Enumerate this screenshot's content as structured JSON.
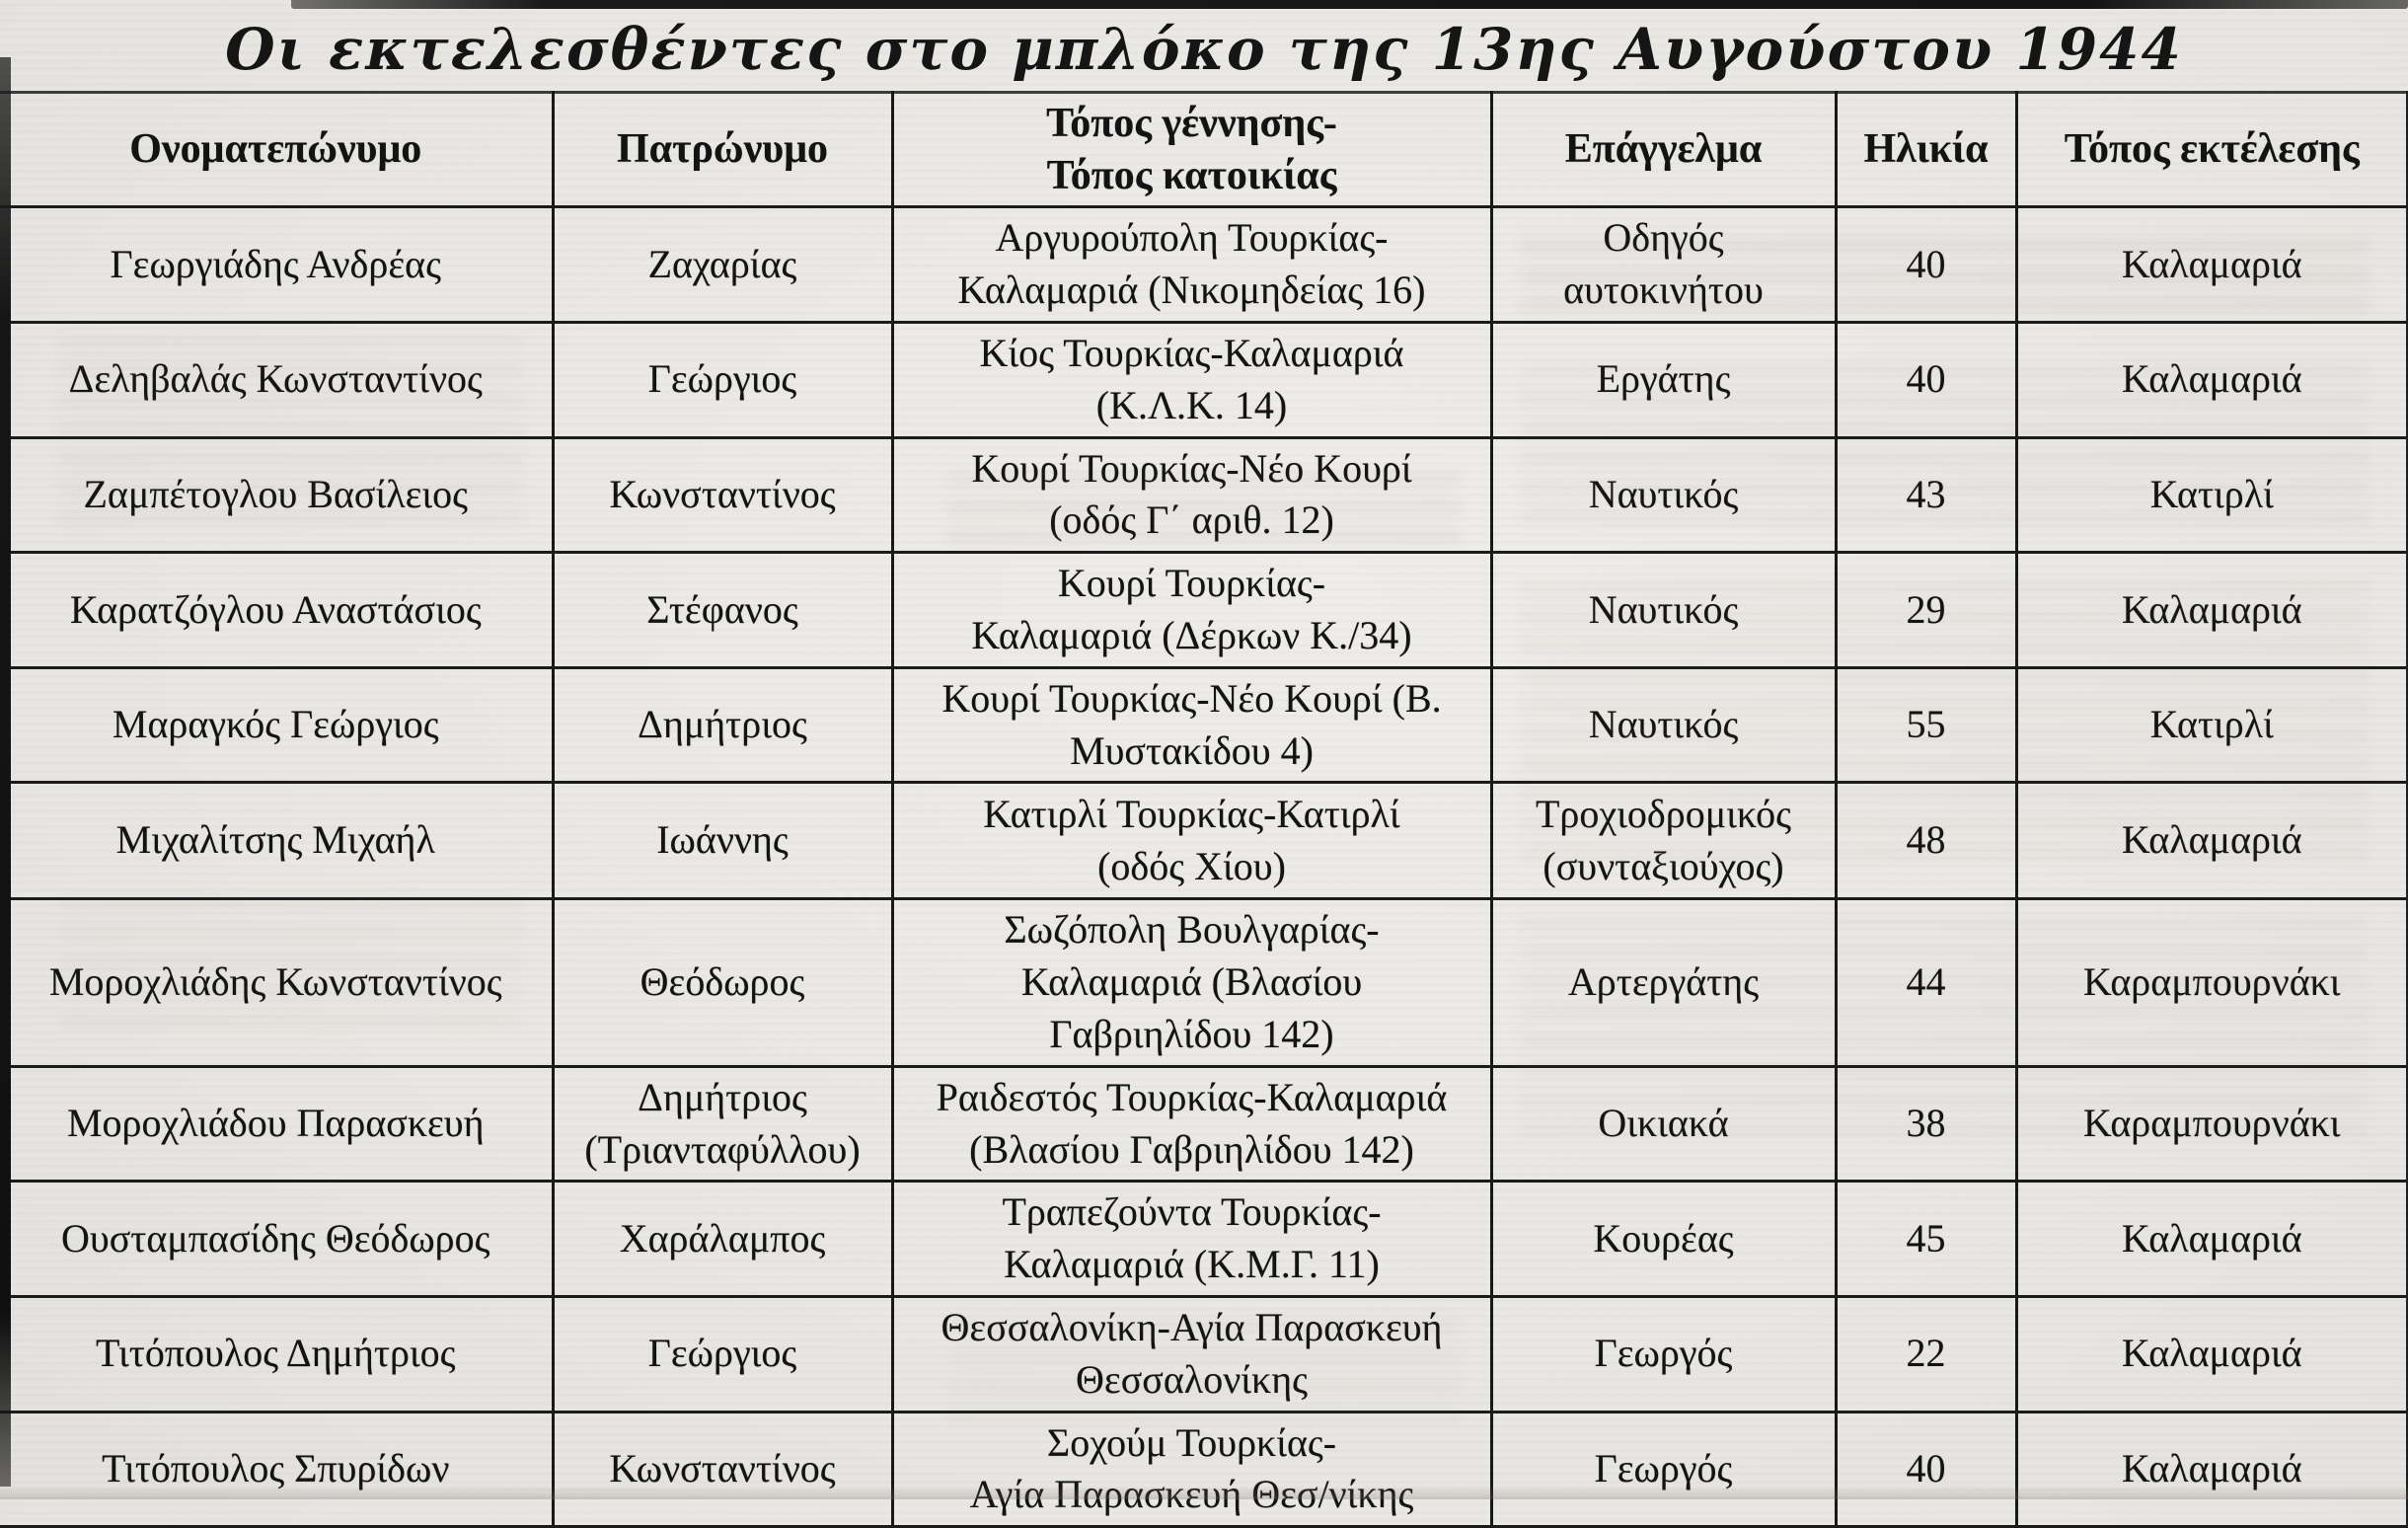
{
  "page_title": "Οι εκτελεσθέντες στο μπλόκο της 13ης Αυγούστου 1944",
  "colors": {
    "paper": "#e9e7e4",
    "ink": "#1a1a1a",
    "table_border": "#1b1b1b"
  },
  "table": {
    "headers": [
      "Ονοματεπώνυμο",
      "Πατρώνυμο",
      "Τόπος γέννησης-\nΤόπος κατοικίας",
      "Επάγγελμα",
      "Ηλικία",
      "Τόπος εκτέλεσης"
    ],
    "rows": [
      {
        "name": "Γεωργιάδης Ανδρέας",
        "patronymic": "Ζαχαρίας",
        "birthplace_residence": "Αργυρούπολη Τουρκίας-\nΚαλαμαριά (Νικομηδείας 16)",
        "occupation": "Οδηγός\nαυτοκινήτου",
        "age": "40",
        "execution_place": "Καλαμαριά"
      },
      {
        "name": "Δεληβαλάς Κωνσταντίνος",
        "patronymic": "Γεώργιος",
        "birthplace_residence": "Κίος Τουρκίας-Καλαμαριά\n(Κ.Λ.Κ. 14)",
        "occupation": "Εργάτης",
        "age": "40",
        "execution_place": "Καλαμαριά"
      },
      {
        "name": "Ζαμπέτογλου Βασίλειος",
        "patronymic": "Κωνσταντίνος",
        "birthplace_residence": "Κουρί Τουρκίας-Νέο Κουρί\n(οδός Γ΄ αριθ. 12)",
        "occupation": "Ναυτικός",
        "age": "43",
        "execution_place": "Κατιρλί"
      },
      {
        "name": "Καρατζόγλου Αναστάσιος",
        "patronymic": "Στέφανος",
        "birthplace_residence": "Κουρί Τουρκίας-\nΚαλαμαριά (Δέρκων Κ./34)",
        "occupation": "Ναυτικός",
        "age": "29",
        "execution_place": "Καλαμαριά"
      },
      {
        "name": "Μαραγκός Γεώργιος",
        "patronymic": "Δημήτριος",
        "birthplace_residence": "Κουρί Τουρκίας-Νέο Κουρί (Β.\nΜυστακίδου 4)",
        "occupation": "Ναυτικός",
        "age": "55",
        "execution_place": "Κατιρλί"
      },
      {
        "name": "Μιχαλίτσης Μιχαήλ",
        "patronymic": "Ιωάννης",
        "birthplace_residence": "Κατιρλί Τουρκίας-Κατιρλί\n(οδός Χίου)",
        "occupation": "Τροχιοδρομικός\n(συνταξιούχος)",
        "age": "48",
        "execution_place": "Καλαμαριά"
      },
      {
        "name": "Μοροχλιάδης Κωνσταντίνος",
        "patronymic": "Θεόδωρος",
        "birthplace_residence": "Σωζόπολη Βουλγαρίας-\nΚαλαμαριά (Βλασίου\nΓαβριηλίδου 142)",
        "occupation": "Αρτεργάτης",
        "age": "44",
        "execution_place": "Καραμπουρνάκι"
      },
      {
        "name": "Μοροχλιάδου Παρασκευή",
        "patronymic": "Δημήτριος\n(Τριανταφύλλου)",
        "birthplace_residence": "Ραιδεστός Τουρκίας-Καλαμαριά\n(Βλασίου Γαβριηλίδου 142)",
        "occupation": "Οικιακά",
        "age": "38",
        "execution_place": "Καραμπουρνάκι"
      },
      {
        "name": "Ουσταμπασίδης Θεόδωρος",
        "patronymic": "Χαράλαμπος",
        "birthplace_residence": "Τραπεζούντα Τουρκίας-\nΚαλαμαριά (Κ.Μ.Γ. 11)",
        "occupation": "Κουρέας",
        "age": "45",
        "execution_place": "Καλαμαριά"
      },
      {
        "name": "Τιτόπουλος Δημήτριος",
        "patronymic": "Γεώργιος",
        "birthplace_residence": "Θεσσαλονίκη-Αγία Παρασκευή\nΘεσσαλονίκης",
        "occupation": "Γεωργός",
        "age": "22",
        "execution_place": "Καλαμαριά"
      },
      {
        "name": "Τιτόπουλος Σπυρίδων",
        "patronymic": "Κωνσταντίνος",
        "birthplace_residence": "Σοχούμ Τουρκίας-\nΑγία Παρασκευή Θεσ/νίκης",
        "occupation": "Γεωργός",
        "age": "40",
        "execution_place": "Καλαμαριά"
      }
    ]
  }
}
